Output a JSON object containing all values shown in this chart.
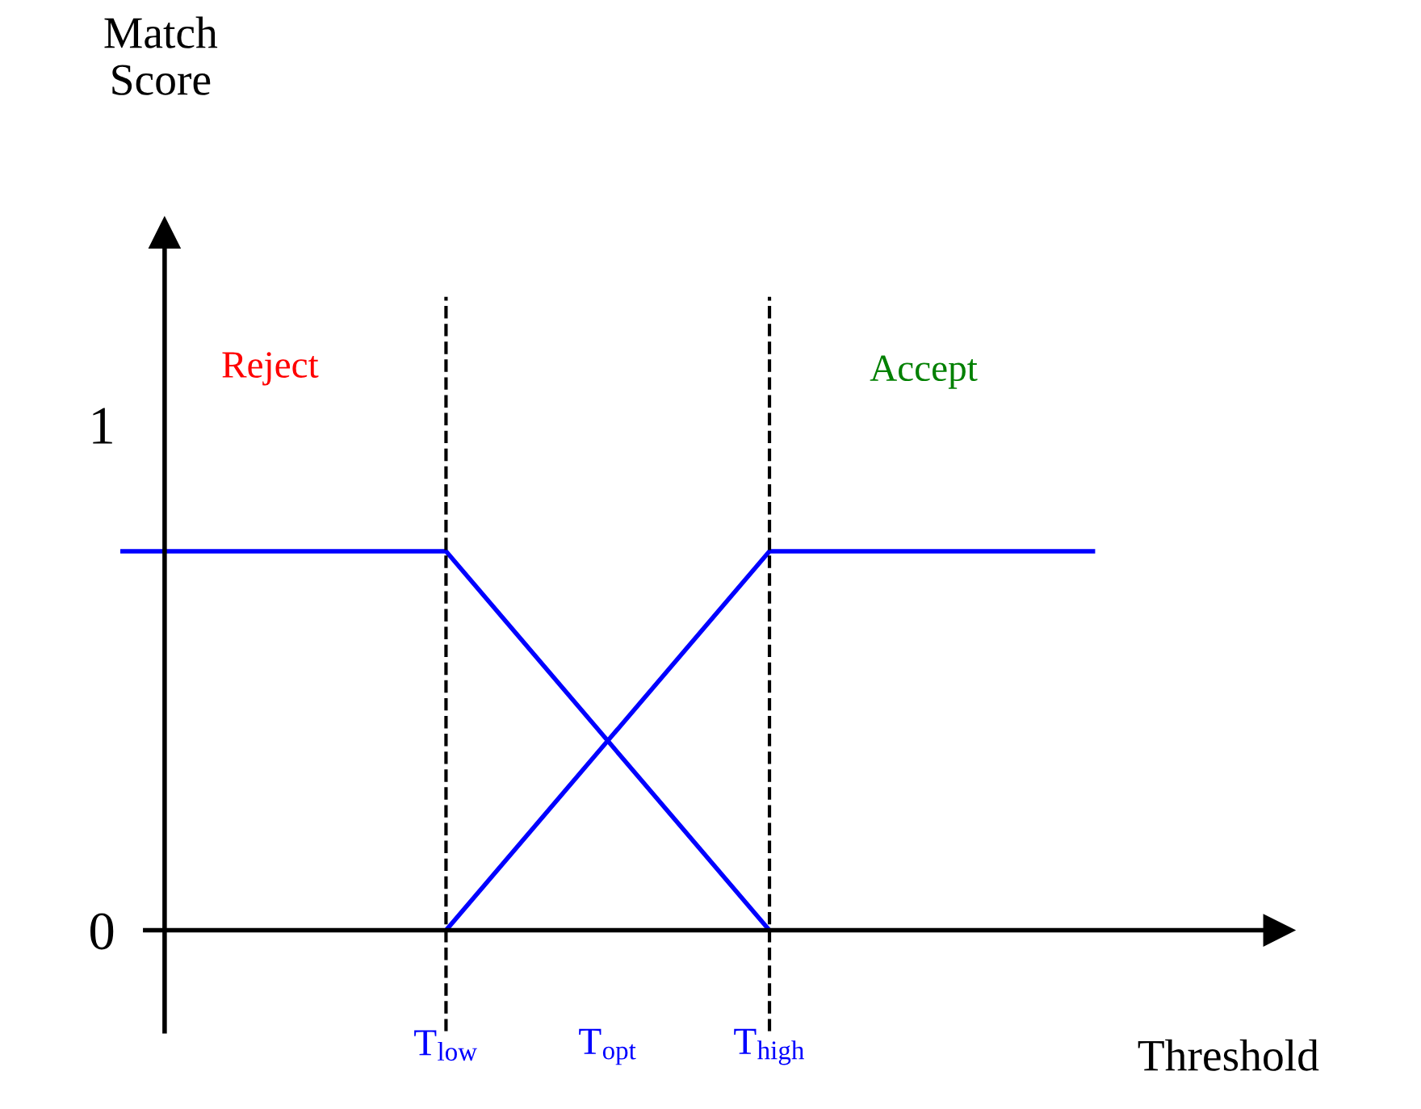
{
  "chart_data": {
    "type": "line",
    "xlabel": "Threshold",
    "ylabel": "Match Score",
    "categories": [
      null,
      null,
      "T$_{low}$",
      "T$_{opt}$",
      "T$_{high}$",
      null,
      null
    ],
    "ylim": [
      -0.2,
      1.38
    ],
    "yticks": [
      0,
      1
    ],
    "series": [
      {
        "color": "#0000ff",
        "values": [
          0.75,
          0.75,
          0.75,
          0.375,
          0,
          null,
          null
        ]
      },
      {
        "color": "#0000ff",
        "values": [
          null,
          null,
          0,
          0.375,
          0.75,
          0.75,
          0.75
        ]
      }
    ],
    "ref_lines": [
      {
        "axis": "x",
        "value": "T$_{low}$",
        "color": "#000000",
        "line_style": "dashed"
      },
      {
        "axis": "x",
        "value": "T$_{high}$",
        "color": "#000000",
        "line_style": "dashed"
      }
    ],
    "annotations": [
      "Reject",
      "Accept"
    ],
    "grid": false,
    "legend": false
  }
}
